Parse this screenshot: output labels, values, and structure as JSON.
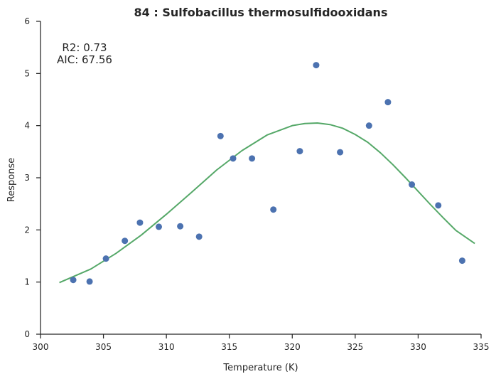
{
  "chart_data": {
    "type": "scatter",
    "title": "84 : Sulfobacillus thermosulfidooxidans",
    "xlabel": "Temperature (K)",
    "ylabel": "Response",
    "xlim": [
      300,
      335
    ],
    "ylim": [
      0,
      6
    ],
    "x_ticks": [
      "300",
      "305",
      "310",
      "315",
      "320",
      "325",
      "330",
      "335"
    ],
    "y_ticks": [
      "0",
      "1",
      "2",
      "3",
      "4",
      "5",
      "6"
    ],
    "grid": false,
    "annotations": [
      "R2: 0.73",
      "AIC: 67.56"
    ],
    "series": [
      {
        "type": "scatter",
        "color": "#4c72b0",
        "points": [
          {
            "x": 302.6,
            "y": 1.04
          },
          {
            "x": 303.9,
            "y": 1.01
          },
          {
            "x": 305.2,
            "y": 1.45
          },
          {
            "x": 306.7,
            "y": 1.79
          },
          {
            "x": 307.9,
            "y": 2.14
          },
          {
            "x": 309.4,
            "y": 2.06
          },
          {
            "x": 311.1,
            "y": 2.07
          },
          {
            "x": 312.6,
            "y": 1.87
          },
          {
            "x": 314.3,
            "y": 3.8
          },
          {
            "x": 315.3,
            "y": 3.37
          },
          {
            "x": 316.8,
            "y": 3.37
          },
          {
            "x": 318.5,
            "y": 2.39
          },
          {
            "x": 320.6,
            "y": 3.51
          },
          {
            "x": 321.9,
            "y": 5.16
          },
          {
            "x": 323.8,
            "y": 3.49
          },
          {
            "x": 326.1,
            "y": 4.0
          },
          {
            "x": 327.6,
            "y": 4.45
          },
          {
            "x": 329.5,
            "y": 2.87
          },
          {
            "x": 331.6,
            "y": 2.47
          },
          {
            "x": 333.5,
            "y": 1.41
          }
        ]
      },
      {
        "type": "line",
        "color": "#55a868",
        "points": [
          {
            "x": 301.5,
            "y": 0.99
          },
          {
            "x": 304.0,
            "y": 1.25
          },
          {
            "x": 306.0,
            "y": 1.55
          },
          {
            "x": 308.0,
            "y": 1.9
          },
          {
            "x": 310.0,
            "y": 2.3
          },
          {
            "x": 312.0,
            "y": 2.72
          },
          {
            "x": 314.0,
            "y": 3.15
          },
          {
            "x": 316.0,
            "y": 3.52
          },
          {
            "x": 318.0,
            "y": 3.82
          },
          {
            "x": 320.0,
            "y": 4.0
          },
          {
            "x": 321.0,
            "y": 4.04
          },
          {
            "x": 322.0,
            "y": 4.05
          },
          {
            "x": 323.0,
            "y": 4.02
          },
          {
            "x": 324.0,
            "y": 3.95
          },
          {
            "x": 325.0,
            "y": 3.83
          },
          {
            "x": 326.0,
            "y": 3.68
          },
          {
            "x": 327.0,
            "y": 3.48
          },
          {
            "x": 328.0,
            "y": 3.25
          },
          {
            "x": 329.0,
            "y": 3.0
          },
          {
            "x": 330.0,
            "y": 2.74
          },
          {
            "x": 331.0,
            "y": 2.48
          },
          {
            "x": 332.0,
            "y": 2.23
          },
          {
            "x": 333.0,
            "y": 1.99
          },
          {
            "x": 334.5,
            "y": 1.74
          }
        ]
      }
    ]
  }
}
